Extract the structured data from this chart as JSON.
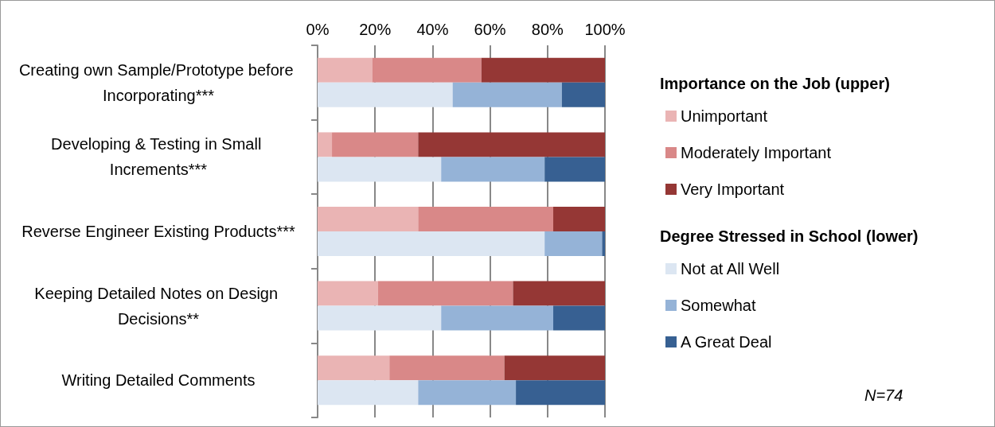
{
  "chart_data": {
    "type": "bar",
    "orientation": "horizontal",
    "stacked": true,
    "categories": [
      "Creating own Sample/Prototype before Incorporating***",
      "Developing & Testing in Small Increments***",
      "Reverse Engineer Existing Products***",
      "Keeping Detailed Notes on Design Decisions**",
      "Writing Detailed Comments"
    ],
    "series": [
      {
        "name": "Unimportant",
        "color": "#eab4b4",
        "values": [
          19,
          5,
          35,
          21,
          25
        ]
      },
      {
        "name": "Moderately Important",
        "color": "#d98888",
        "values": [
          38,
          30,
          47,
          47,
          40
        ]
      },
      {
        "name": "Very Important",
        "color": "#953735",
        "values": [
          43,
          65,
          18,
          32,
          35
        ]
      },
      {
        "name": "Not at All Well",
        "color": "#dce6f2",
        "axis": "y2",
        "values": [
          47,
          43,
          79,
          43,
          35
        ]
      },
      {
        "name": "Somewhat",
        "color": "#95b3d7",
        "axis": "y2",
        "values": [
          38,
          36,
          20,
          39,
          34
        ]
      },
      {
        "name": "A Great Deal",
        "color": "#376092",
        "axis": "y2",
        "values": [
          15,
          21,
          1,
          18,
          31
        ]
      }
    ],
    "legend_title": [
      "Importance on the Job (upper)",
      "Degree Stressed in School (lower)"
    ],
    "legend": "right",
    "xlim": [
      0,
      100
    ],
    "xticks": [
      {
        "value": 0,
        "label": "0%"
      },
      {
        "value": 20,
        "label": "20%"
      },
      {
        "value": 40,
        "label": "40%"
      },
      {
        "value": 60,
        "label": "60%"
      },
      {
        "value": 80,
        "label": "80%"
      },
      {
        "value": 100,
        "label": "100%"
      }
    ],
    "grid": "x",
    "annotations": [
      "N=74"
    ]
  }
}
